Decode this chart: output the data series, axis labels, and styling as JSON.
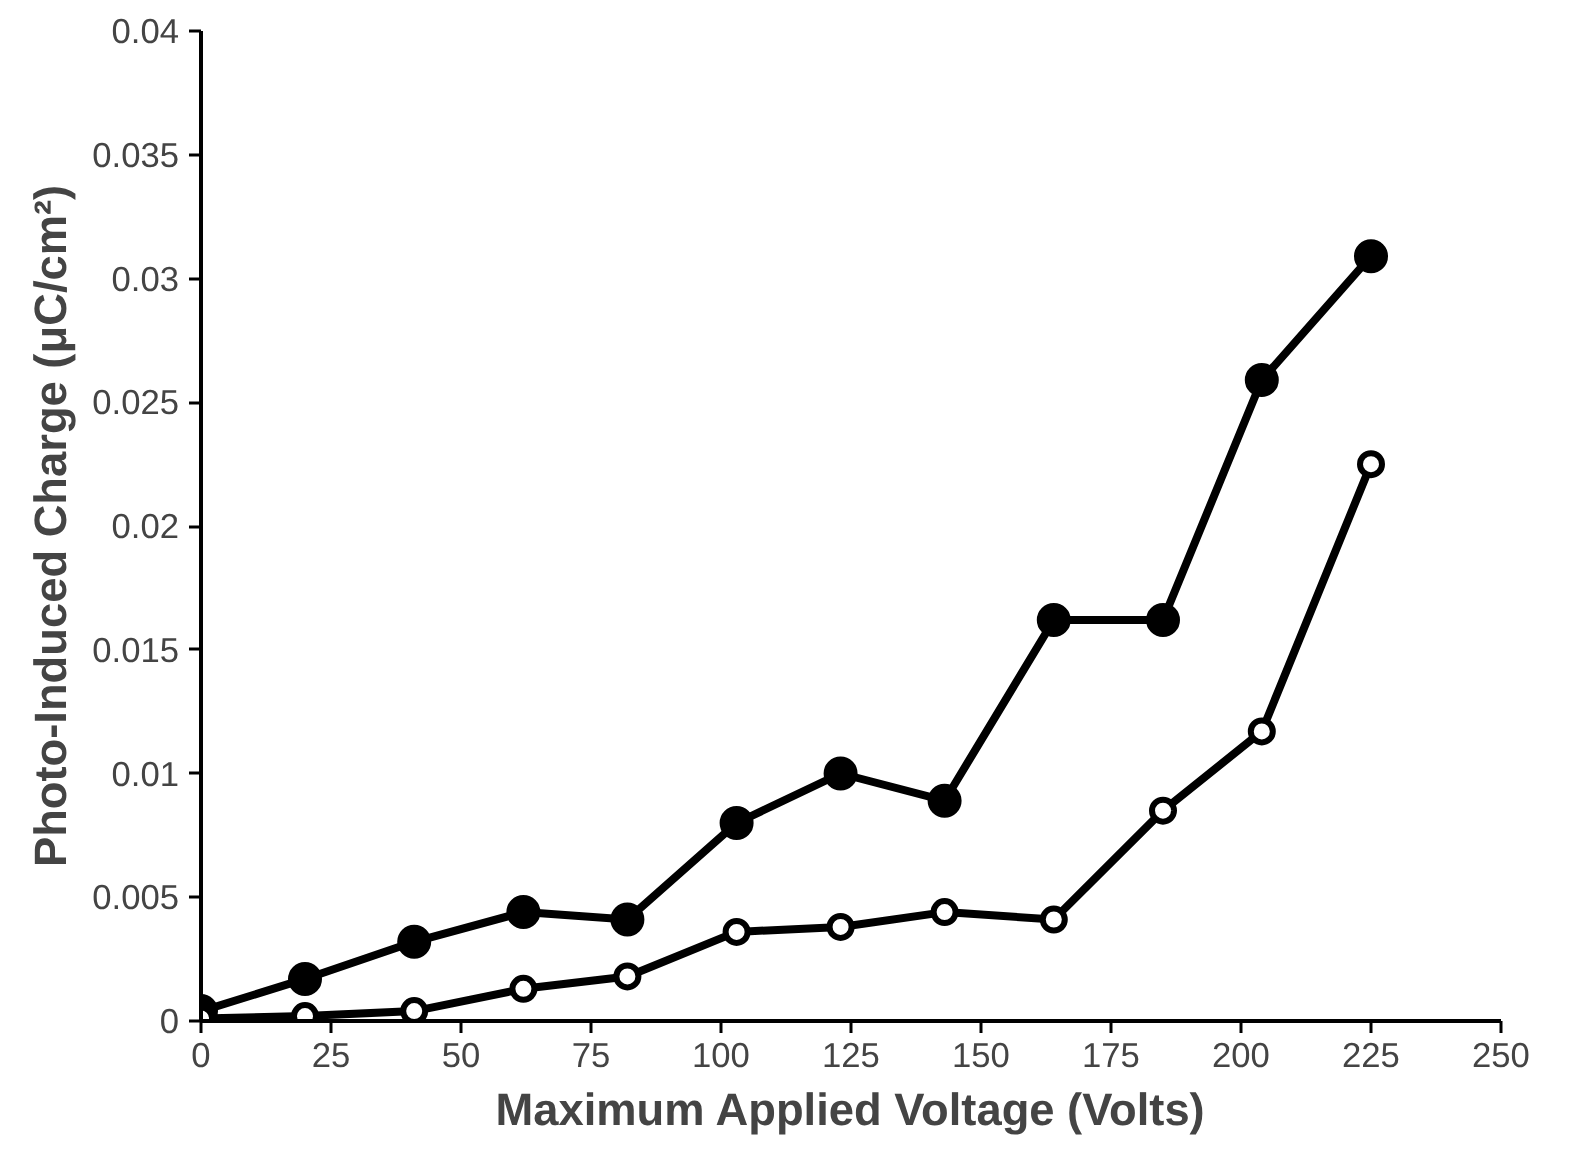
{
  "chart_data": {
    "type": "line",
    "xlabel": "Maximum Applied Voltage (Volts)",
    "ylabel": "Photo-Induced Charge (μC/cm²)",
    "xlim": [
      0,
      250
    ],
    "xticks": [
      0,
      25,
      50,
      75,
      100,
      125,
      150,
      175,
      200,
      225,
      250
    ],
    "ylim": [
      0,
      0.04
    ],
    "yticks": [
      0,
      0.005,
      0.01,
      0.015,
      0.02,
      0.025,
      0.03,
      0.035,
      0.04
    ],
    "x": [
      0,
      20,
      41,
      62,
      82,
      103,
      123,
      143,
      164,
      185,
      204,
      225
    ],
    "series": [
      {
        "color": "#000000",
        "values": [
          0.0004,
          0.0017,
          0.0032,
          0.0044,
          0.0041,
          0.008,
          0.01,
          0.0089,
          0.0162,
          0.0162,
          0.0259,
          0.0309
        ]
      },
      {
        "color": "#000000",
        "values": [
          0.0001,
          0.0002,
          0.0004,
          0.0013,
          0.0018,
          0.0036,
          0.0038,
          0.0044,
          0.0041,
          0.0085,
          0.0117,
          0.0225
        ]
      }
    ],
    "marker": "circle",
    "line_style": "solid",
    "grid": false
  }
}
